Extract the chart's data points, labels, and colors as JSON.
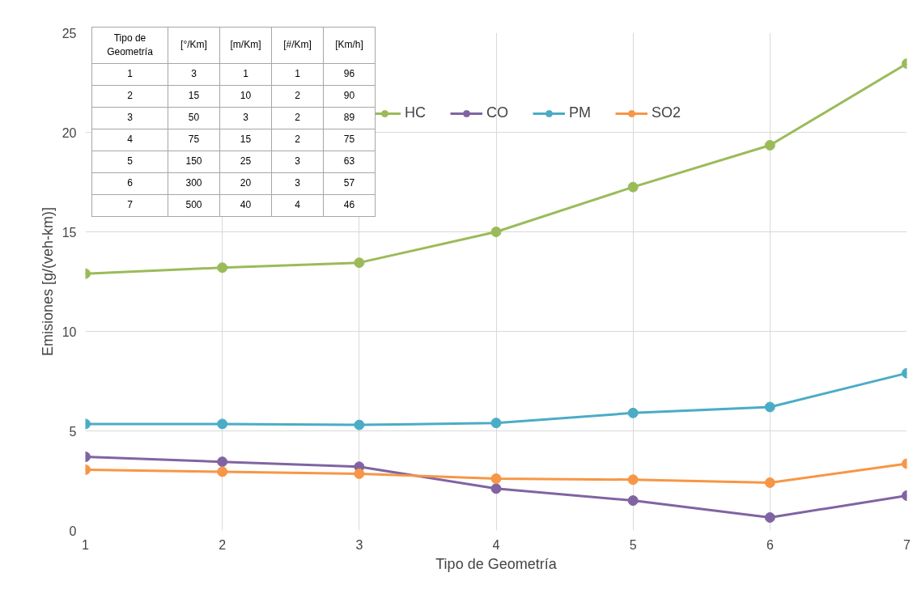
{
  "chart_data": {
    "type": "line",
    "xlabel": "Tipo de Geometría",
    "ylabel": "Emisiones [g/(veh-km)]",
    "x": [
      1,
      2,
      3,
      4,
      5,
      6,
      7
    ],
    "series": [
      {
        "name": "HC",
        "color": "#9bbb59",
        "values": [
          12.9,
          13.2,
          13.45,
          15.0,
          17.25,
          19.35,
          23.45
        ]
      },
      {
        "name": "CO",
        "color": "#8064a2",
        "values": [
          3.7,
          3.45,
          3.2,
          2.1,
          1.5,
          0.65,
          1.75
        ]
      },
      {
        "name": "PM",
        "color": "#4bacc6",
        "values": [
          5.35,
          5.35,
          5.3,
          5.4,
          5.9,
          6.2,
          7.9
        ]
      },
      {
        "name": "SO2",
        "color": "#f79646",
        "values": [
          3.05,
          2.95,
          2.85,
          2.6,
          2.55,
          2.4,
          3.35
        ]
      }
    ],
    "xlim": [
      1,
      7
    ],
    "ylim": [
      0,
      25
    ],
    "xticks": [
      1,
      2,
      3,
      4,
      5,
      6,
      7
    ],
    "yticks": [
      0,
      5,
      10,
      15,
      20,
      25
    ],
    "grid": true,
    "legend": "top",
    "marker": "circle",
    "line_style": "solid",
    "annotations": [
      "Tipo de Geometría",
      "[°/Km]",
      "[m/Km]",
      "[#/Km]",
      "[Km/h]",
      "1",
      "3",
      "1",
      "1",
      "96",
      "2",
      "15",
      "10",
      "2",
      "90",
      "3",
      "50",
      "3",
      "2",
      "89",
      "4",
      "75",
      "15",
      "2",
      "75",
      "5",
      "150",
      "25",
      "3",
      "63",
      "6",
      "300",
      "20",
      "3",
      "57",
      "7",
      "500",
      "40",
      "4",
      "46"
    ]
  }
}
